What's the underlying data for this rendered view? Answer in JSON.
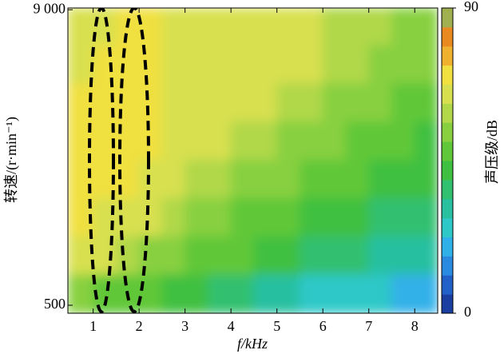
{
  "chart_data": {
    "type": "heatmap",
    "x_label": "f/kHz",
    "y_label": "转速/(r·min⁻¹)",
    "colorbar_label": "声压级/dB",
    "xlim": [
      0.45,
      8.5
    ],
    "xticks": [
      1,
      2,
      3,
      4,
      5,
      6,
      7,
      8
    ],
    "ylim": [
      270,
      9050
    ],
    "yticks": [
      500,
      {
        "value": 9000,
        "label": "9 000"
      }
    ],
    "clim": [
      0,
      90
    ],
    "cticks": [
      0,
      90
    ],
    "colorscale": [
      "#1a3fa0",
      "#2060c8",
      "#2a8ae0",
      "#30b0e8",
      "#2ec8c8",
      "#28c0a0",
      "#30c070",
      "#40c040",
      "#60c838",
      "#88d040",
      "#b0d848",
      "#d8e050",
      "#f0e040",
      "#f0b030",
      "#e88a20",
      "#a0b050"
    ],
    "xbins": [
      0.45,
      1,
      1.5,
      2,
      2.5,
      3,
      3.5,
      4,
      4.5,
      5,
      5.5,
      6,
      6.5,
      7,
      7.5,
      8,
      8.5
    ],
    "ybins": [
      270,
      1400,
      2500,
      3600,
      4700,
      5800,
      6900,
      8000,
      9050
    ],
    "z": [
      [
        55,
        50,
        48,
        45,
        42,
        40,
        38,
        35,
        33,
        30,
        28,
        26,
        25,
        24,
        22,
        22
      ],
      [
        65,
        62,
        60,
        55,
        52,
        50,
        48,
        45,
        42,
        40,
        38,
        36,
        34,
        33,
        32,
        30
      ],
      [
        68,
        66,
        64,
        62,
        58,
        55,
        52,
        50,
        48,
        46,
        44,
        42,
        40,
        38,
        36,
        35
      ],
      [
        70,
        70,
        68,
        66,
        64,
        60,
        58,
        56,
        54,
        52,
        50,
        48,
        46,
        44,
        42,
        40
      ],
      [
        70,
        72,
        70,
        68,
        66,
        64,
        62,
        60,
        58,
        56,
        55,
        52,
        50,
        48,
        46,
        44
      ],
      [
        68,
        72,
        72,
        68,
        66,
        65,
        64,
        62,
        62,
        60,
        58,
        56,
        54,
        52,
        50,
        48
      ],
      [
        66,
        70,
        72,
        70,
        66,
        64,
        64,
        64,
        64,
        63,
        62,
        60,
        58,
        56,
        54,
        52
      ],
      [
        62,
        66,
        70,
        70,
        66,
        62,
        62,
        62,
        62,
        62,
        62,
        60,
        58,
        58,
        56,
        54
      ]
    ]
  }
}
